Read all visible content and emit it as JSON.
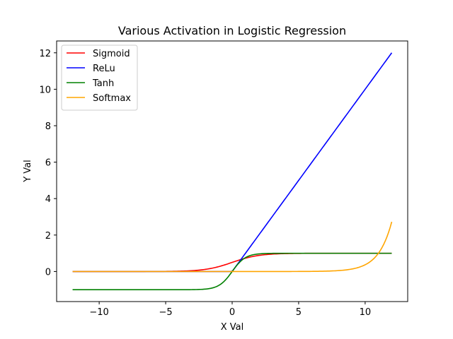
{
  "chart_data": {
    "type": "line",
    "title": "Various Activation in Logistic Regression",
    "xlabel": "X Val",
    "ylabel": "Y Val",
    "xlim": [
      -13.2,
      13.2
    ],
    "ylim": [
      -1.65,
      12.65
    ],
    "x_ticks": [
      -10,
      -5,
      0,
      5,
      10
    ],
    "x_tick_labels": [
      "−10",
      "−5",
      "0",
      "5",
      "10"
    ],
    "y_ticks": [
      0,
      2,
      4,
      6,
      8,
      10,
      12
    ],
    "y_tick_labels": [
      "0",
      "2",
      "4",
      "6",
      "8",
      "10",
      "12"
    ],
    "x_range": [
      -12,
      12
    ],
    "grid": false,
    "legend_position": "top-left",
    "series": [
      {
        "name": "Sigmoid",
        "function": "sigmoid",
        "color": "#ff0000"
      },
      {
        "name": "ReLu",
        "function": "relu",
        "color": "#0000ff"
      },
      {
        "name": "Tanh",
        "function": "tanh",
        "color": "#008000"
      },
      {
        "name": "Softmax",
        "function": "softmax",
        "color": "#ffa500"
      }
    ]
  }
}
